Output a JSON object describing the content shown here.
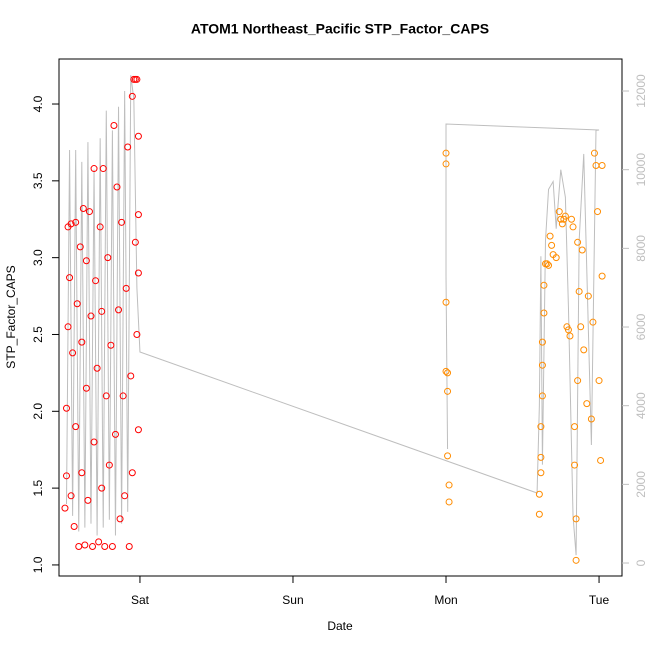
{
  "chart_data": {
    "type": "scatter",
    "title": "ATOM1 Northeast_Pacific STP_Factor_CAPS",
    "x_label": "Date",
    "y_label": "STP_Factor_CAPS",
    "xlim": [
      -0.529,
      3.15
    ],
    "xticks": [
      {
        "value": 0,
        "label": "Sat"
      },
      {
        "value": 1,
        "label": "Sun"
      },
      {
        "value": 2,
        "label": "Mon"
      },
      {
        "value": 3,
        "label": "Tue"
      }
    ],
    "ylim": [
      0.928,
      4.293
    ],
    "yticks": [
      {
        "value": 1,
        "label": "1.0"
      },
      1.5,
      {
        "value": 2,
        "label": "2.0"
      },
      2.5,
      {
        "value": 3,
        "label": "3.0"
      },
      3.5,
      {
        "value": 4,
        "label": "4.0"
      }
    ],
    "y2lim": [
      -330,
      12814
    ],
    "y2ticks": [
      0,
      2000,
      4000,
      6000,
      8000,
      10000,
      12000
    ],
    "series": [
      {
        "type": "scatter",
        "color": "#ff0000",
        "x": [
          -0.49,
          -0.48,
          -0.48,
          -0.47,
          -0.47,
          -0.46,
          -0.45,
          -0.45,
          -0.44,
          -0.43,
          -0.42,
          -0.42,
          -0.41,
          -0.4,
          -0.39,
          -0.38,
          -0.38,
          -0.37,
          -0.36,
          -0.35,
          -0.35,
          -0.34,
          -0.33,
          -0.32,
          -0.31,
          -0.3,
          -0.3,
          -0.29,
          -0.28,
          -0.27,
          -0.26,
          -0.25,
          -0.25,
          -0.24,
          -0.23,
          -0.22,
          -0.21,
          -0.2,
          -0.19,
          -0.18,
          -0.17,
          -0.16,
          -0.15,
          -0.14,
          -0.13,
          -0.12,
          -0.11,
          -0.1,
          -0.09,
          -0.08,
          -0.07,
          -0.06,
          -0.05,
          -0.05,
          -0.04,
          -0.03,
          -0.03,
          -0.02,
          -0.02,
          -0.01,
          -0.01,
          -0.01,
          -0.01
        ],
        "values": [
          1.37,
          1.58,
          2.02,
          2.55,
          3.2,
          2.87,
          1.45,
          3.22,
          2.38,
          1.25,
          3.23,
          1.9,
          2.7,
          1.12,
          3.07,
          1.6,
          2.45,
          3.32,
          1.13,
          2.15,
          2.98,
          1.42,
          3.3,
          2.62,
          1.12,
          1.8,
          3.58,
          2.85,
          2.28,
          1.15,
          3.2,
          1.5,
          2.65,
          3.58,
          1.12,
          2.1,
          3.0,
          1.65,
          2.43,
          1.12,
          3.86,
          1.85,
          3.46,
          2.66,
          1.3,
          3.23,
          2.1,
          1.45,
          2.8,
          3.72,
          1.12,
          2.23,
          4.05,
          1.6,
          4.16,
          4.16,
          3.1,
          4.16,
          2.5,
          3.28,
          2.9,
          1.88,
          3.79
        ]
      },
      {
        "type": "scatter",
        "color": "#ff8c00",
        "x": [
          2.0,
          2.0,
          2.0,
          2.0,
          2.01,
          2.01,
          2.01,
          2.02,
          2.02,
          2.61,
          2.61,
          2.62,
          2.62,
          2.62,
          2.63,
          2.63,
          2.63,
          2.64,
          2.64,
          2.65,
          2.66,
          2.67,
          2.68,
          2.69,
          2.7,
          2.72,
          2.74,
          2.75,
          2.76,
          2.77,
          2.78,
          2.79,
          2.8,
          2.81,
          2.82,
          2.83,
          2.84,
          2.84,
          2.85,
          2.85,
          2.86,
          2.86,
          2.87,
          2.88,
          2.89,
          2.9,
          2.92,
          2.93,
          2.95,
          2.96,
          2.97,
          2.98,
          2.99,
          3.0,
          3.01,
          3.02,
          3.02
        ],
        "values": [
          3.68,
          3.61,
          2.71,
          2.26,
          2.25,
          2.13,
          1.71,
          1.52,
          1.41,
          1.46,
          1.33,
          1.6,
          1.7,
          1.9,
          2.1,
          2.3,
          2.45,
          2.64,
          2.82,
          2.96,
          2.96,
          2.95,
          3.14,
          3.08,
          3.02,
          3.0,
          3.3,
          3.25,
          3.22,
          3.25,
          3.27,
          2.55,
          2.53,
          2.49,
          3.25,
          3.2,
          1.9,
          1.65,
          1.3,
          1.03,
          2.2,
          3.1,
          2.78,
          2.55,
          3.05,
          2.4,
          2.05,
          2.75,
          1.95,
          2.58,
          3.68,
          3.6,
          3.3,
          2.2,
          1.68,
          2.88,
          3.6
        ]
      },
      {
        "type": "line",
        "axis": "y2",
        "color": "#bebebe",
        "x": [
          -0.48,
          -0.46,
          -0.44,
          -0.42,
          -0.4,
          -0.38,
          -0.36,
          -0.34,
          -0.32,
          -0.3,
          -0.28,
          -0.26,
          -0.24,
          -0.22,
          -0.2,
          -0.18,
          -0.16,
          -0.14,
          -0.12,
          -0.1,
          -0.08,
          -0.06,
          -0.04,
          -0.02,
          0.0,
          2.595,
          2.61,
          2.62,
          2.63,
          2.65,
          2.67,
          2.7,
          2.72,
          2.75,
          2.78,
          2.8,
          2.83,
          2.85,
          2.87,
          2.9,
          2.95,
          2.98,
          3.0,
          2.0,
          2.0,
          2.01
        ],
        "values": [
          1500,
          10500,
          1200,
          10500,
          800,
          10200,
          900,
          10700,
          1000,
          10000,
          700,
          10800,
          900,
          11500,
          1100,
          11000,
          700,
          11600,
          1000,
          12000,
          1300,
          12400,
          11800,
          7000,
          5365,
          1780,
          4000,
          7800,
          2500,
          8200,
          9500,
          9700,
          8500,
          10000,
          9300,
          6500,
          1200,
          200,
          8200,
          10400,
          3000,
          11000,
          11010,
          11160,
          7300,
          2900
        ]
      }
    ]
  }
}
